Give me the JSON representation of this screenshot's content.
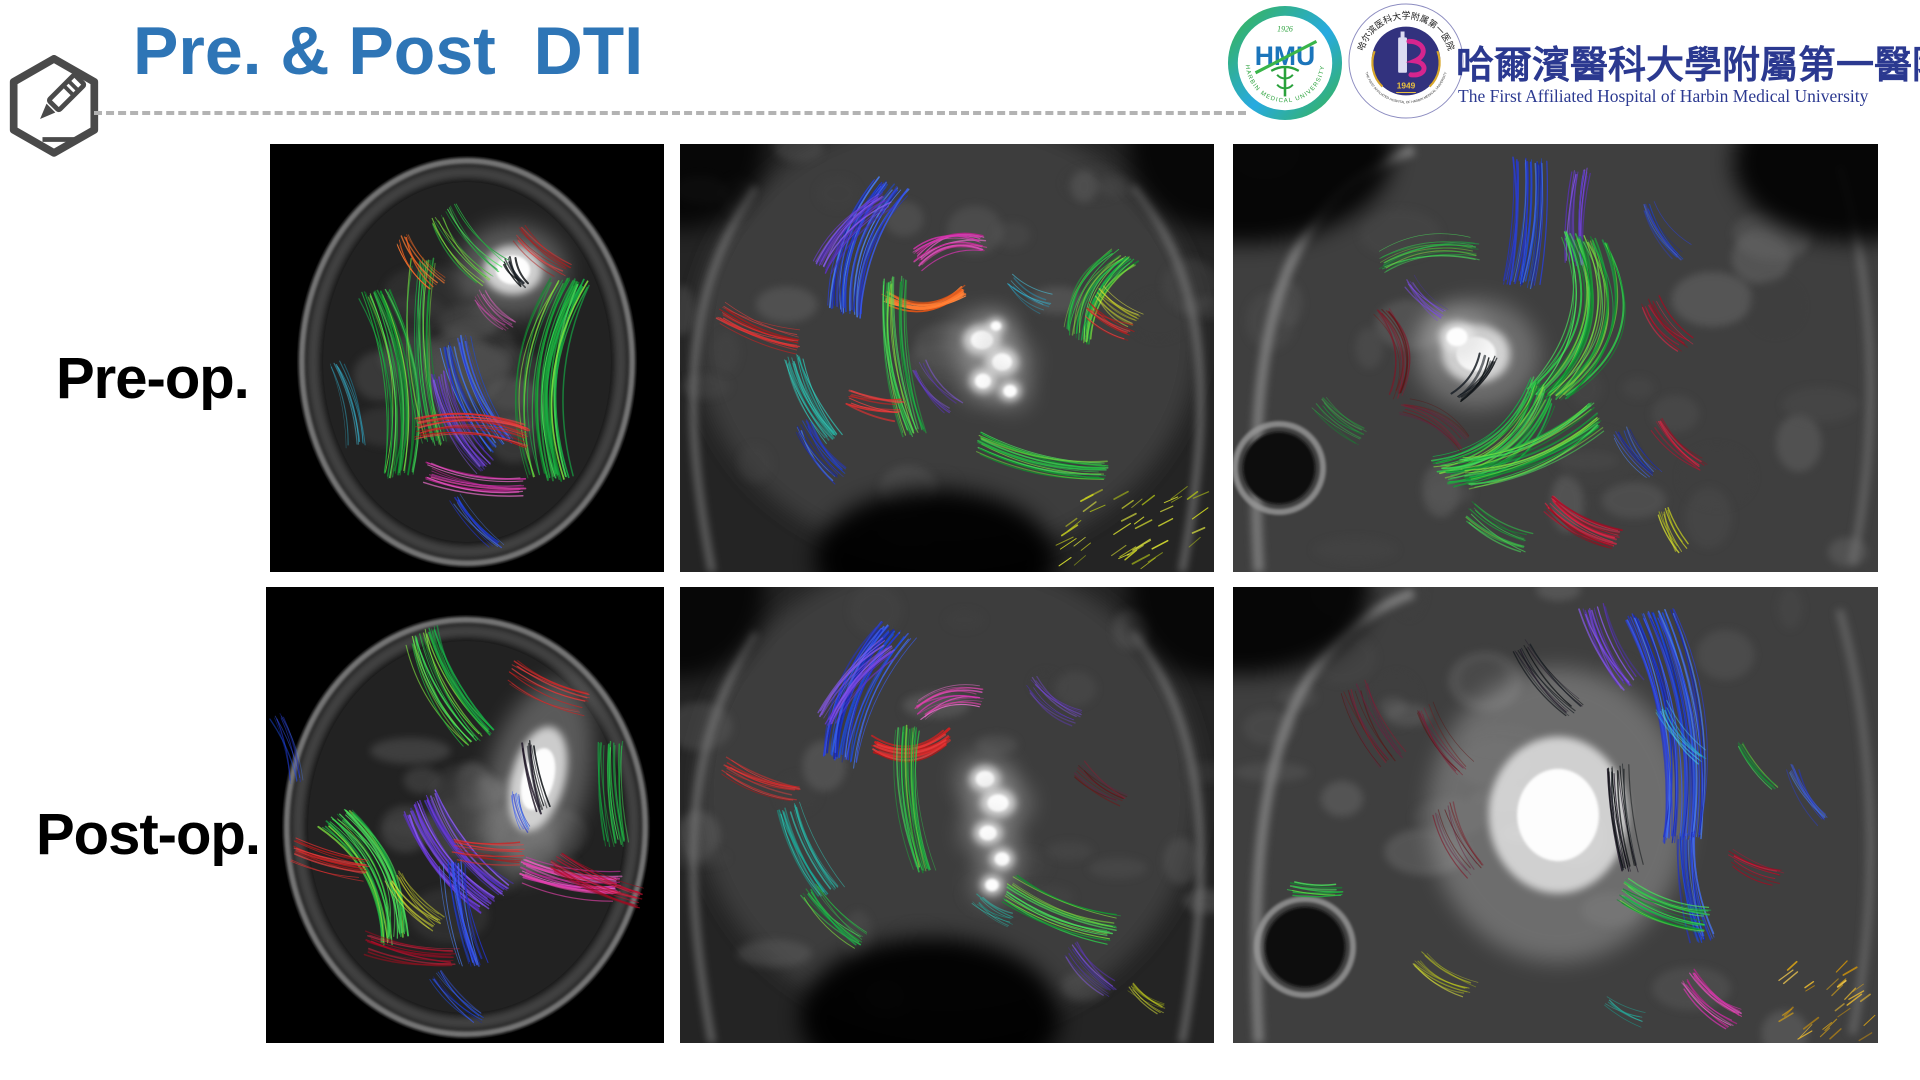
{
  "slide": {
    "title": "Pre. & Post  DTI",
    "title_color": "#2E75B6"
  },
  "header": {
    "logo_hmu": {
      "abbr": "HMU",
      "year": "1926",
      "ring_text": "HARBIN MEDICAL UNIVERSITY"
    },
    "logo_hospital": {
      "year": "1949",
      "ring_text_zh": "哈尔滨医科大学附属第一医院",
      "ring_text_en": "THE FIRST AFFILIATED HOSPITAL OF HARBIN MEDICAL UNIVERSITY"
    },
    "hospital_name_zh": "哈爾濱醫科大學附屬第一醫院",
    "hospital_name_en": "The First Affiliated Hospital of Harbin Medical University"
  },
  "rows": [
    {
      "label": "Pre-op.",
      "panels": [
        {
          "view": "axial DTI tractography, pre-operative"
        },
        {
          "view": "coronal DTI tractography, pre-operative"
        },
        {
          "view": "sagittal DTI tractography, pre-operative"
        }
      ]
    },
    {
      "label": "Post-op.",
      "panels": [
        {
          "view": "axial DTI tractography, post-operative"
        },
        {
          "view": "coronal DTI tractography, post-operative"
        },
        {
          "view": "sagittal DTI tractography, post-operative"
        }
      ]
    }
  ]
}
